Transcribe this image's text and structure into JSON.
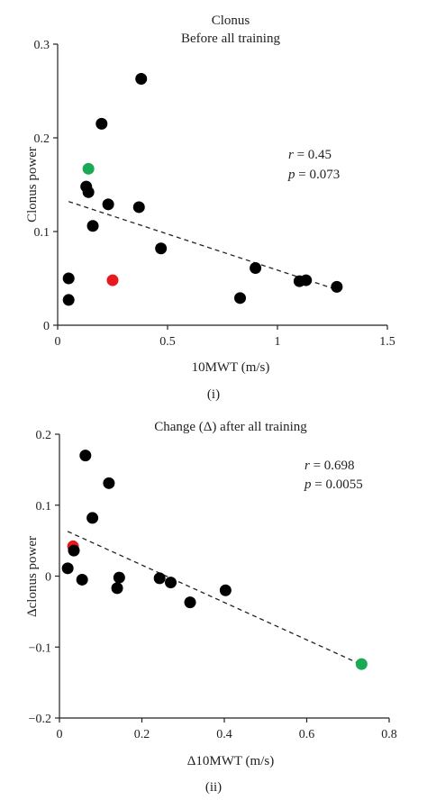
{
  "chart_data": [
    {
      "type": "scatter",
      "title": "Clonus",
      "subtitle": "Before all training",
      "xlabel": "10MWT (m/s)",
      "ylabel": "Clonus power",
      "panel_label": "(i)",
      "xlim": [
        0,
        1.5
      ],
      "ylim": [
        0,
        0.3
      ],
      "x_ticks": [
        0,
        0.5,
        1,
        1.5
      ],
      "x_tick_labels": [
        "0",
        "0.5",
        "1",
        "1.5"
      ],
      "y_ticks": [
        0,
        0.1,
        0.2,
        0.3
      ],
      "y_tick_labels": [
        "0",
        "0.1",
        "0.2",
        "0.3"
      ],
      "stats": {
        "r_label": "r",
        "r_value": " = 0.45",
        "p_label": "p",
        "p_value": " = 0.073"
      },
      "trendline": {
        "x": [
          0.05,
          1.27
        ],
        "y": [
          0.132,
          0.038
        ]
      },
      "colors": {
        "default": "#000000",
        "red": "#e8191c",
        "green": "#1aa955"
      },
      "points": [
        {
          "x": 0.38,
          "y": 0.263,
          "color": "#000000"
        },
        {
          "x": 0.2,
          "y": 0.215,
          "color": "#000000"
        },
        {
          "x": 0.14,
          "y": 0.167,
          "color": "#1aa955"
        },
        {
          "x": 0.13,
          "y": 0.148,
          "color": "#000000"
        },
        {
          "x": 0.14,
          "y": 0.142,
          "color": "#000000"
        },
        {
          "x": 0.23,
          "y": 0.129,
          "color": "#000000"
        },
        {
          "x": 0.37,
          "y": 0.126,
          "color": "#000000"
        },
        {
          "x": 0.16,
          "y": 0.106,
          "color": "#000000"
        },
        {
          "x": 0.47,
          "y": 0.082,
          "color": "#000000"
        },
        {
          "x": 0.05,
          "y": 0.05,
          "color": "#000000"
        },
        {
          "x": 0.25,
          "y": 0.048,
          "color": "#e8191c"
        },
        {
          "x": 0.05,
          "y": 0.027,
          "color": "#000000"
        },
        {
          "x": 0.83,
          "y": 0.029,
          "color": "#000000"
        },
        {
          "x": 0.9,
          "y": 0.061,
          "color": "#000000"
        },
        {
          "x": 1.1,
          "y": 0.047,
          "color": "#000000"
        },
        {
          "x": 1.13,
          "y": 0.048,
          "color": "#000000"
        },
        {
          "x": 1.27,
          "y": 0.041,
          "color": "#000000"
        }
      ]
    },
    {
      "type": "scatter",
      "title": "Change (Δ) after all training",
      "subtitle": "",
      "xlabel": "Δ10MWT (m/s)",
      "ylabel": "Δclonus power",
      "panel_label": "(ii)",
      "xlim": [
        0,
        0.8
      ],
      "ylim": [
        -0.2,
        0.2
      ],
      "x_ticks": [
        0,
        0.2,
        0.4,
        0.6,
        0.8
      ],
      "x_tick_labels": [
        "0",
        "0.2",
        "0.4",
        "0.6",
        "0.8"
      ],
      "y_ticks": [
        -0.2,
        -0.1,
        0,
        0.1,
        0.2
      ],
      "y_tick_labels": [
        "−0.2",
        "−0.1",
        "0",
        "0.1",
        "0.2"
      ],
      "stats": {
        "r_label": "r",
        "r_value": " = 0.698",
        "p_label": "p",
        "p_value": " = 0.0055"
      },
      "trendline": {
        "x": [
          0.02,
          0.73
        ],
        "y": [
          0.063,
          -0.124
        ]
      },
      "colors": {
        "default": "#000000",
        "red": "#e8191c",
        "green": "#1aa955"
      },
      "points": [
        {
          "x": 0.063,
          "y": 0.17,
          "color": "#000000"
        },
        {
          "x": 0.12,
          "y": 0.131,
          "color": "#000000"
        },
        {
          "x": 0.08,
          "y": 0.082,
          "color": "#000000"
        },
        {
          "x": 0.033,
          "y": 0.042,
          "color": "#e8191c"
        },
        {
          "x": 0.035,
          "y": 0.036,
          "color": "#000000"
        },
        {
          "x": 0.02,
          "y": 0.011,
          "color": "#000000"
        },
        {
          "x": 0.055,
          "y": -0.005,
          "color": "#000000"
        },
        {
          "x": 0.145,
          "y": -0.002,
          "color": "#000000"
        },
        {
          "x": 0.14,
          "y": -0.017,
          "color": "#000000"
        },
        {
          "x": 0.243,
          "y": -0.003,
          "color": "#000000"
        },
        {
          "x": 0.27,
          "y": -0.009,
          "color": "#000000"
        },
        {
          "x": 0.317,
          "y": -0.037,
          "color": "#000000"
        },
        {
          "x": 0.403,
          "y": -0.02,
          "color": "#000000"
        },
        {
          "x": 0.733,
          "y": -0.124,
          "color": "#1aa955"
        }
      ]
    }
  ]
}
